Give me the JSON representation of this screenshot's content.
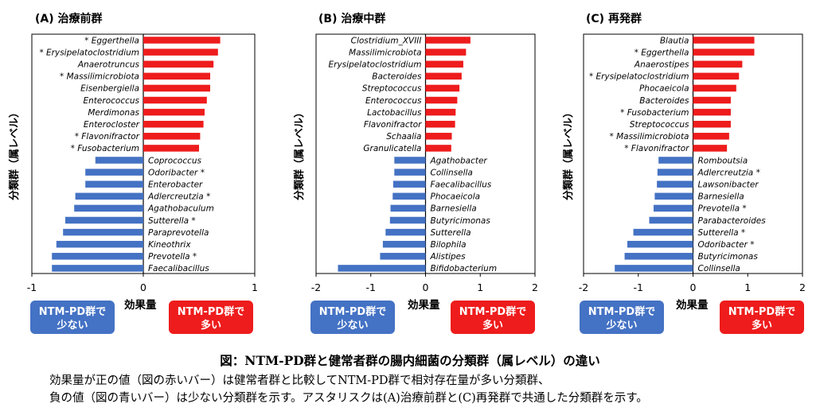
{
  "chart_data": [
    {
      "type": "bar",
      "orientation": "horizontal",
      "panel": "(A)",
      "title": "治療前群",
      "ylabel": "分類群（属レベル）",
      "xlabel": "効果量",
      "xlim": [
        -1,
        1
      ],
      "xticks": [
        "-1",
        "0",
        "1"
      ],
      "categories": [
        "* Eggerthella",
        "* Erysipelatoclostridium",
        "Anaerotruncus",
        "* Massilimicrobiota",
        "Eisenbergiella",
        "Enterococcus",
        "Merdimonas",
        "Enterocloster",
        "* Flavonifractor",
        "* Fusobacterium",
        "Coprococcus",
        "Odoribacter *",
        "Enterobacter",
        "Adlercreutzia *",
        "Agathobaculum",
        "Sutterella *",
        "Paraprevotella",
        "Kineothrix",
        "Prevotella *",
        "Faecalibacillus"
      ],
      "values": [
        0.69,
        0.67,
        0.63,
        0.6,
        0.6,
        0.57,
        0.55,
        0.54,
        0.51,
        0.5,
        -0.43,
        -0.52,
        -0.52,
        -0.61,
        -0.62,
        -0.7,
        -0.72,
        -0.78,
        -0.82,
        -0.82
      ],
      "legend": [
        {
          "label": "NTM-PD群で少ない",
          "color": "#4472C4"
        },
        {
          "label": "NTM-PD群で多い",
          "color": "#EE1C1C"
        }
      ]
    },
    {
      "type": "bar",
      "orientation": "horizontal",
      "panel": "(B)",
      "title": "治療中群",
      "ylabel": "分類群（属レベル）",
      "xlabel": "効果量",
      "xlim": [
        -2,
        2
      ],
      "xticks": [
        "-2",
        "-1",
        "0",
        "1",
        "2"
      ],
      "categories": [
        "Clostridium_XVIII",
        "Massilimicrobiota",
        "Erysipelatoclostridium",
        "Bacteroides",
        "Streptococcus",
        "Enterococcus",
        "Lactobacillus",
        "Flavonifractor",
        "Schaalia",
        "Granulicatella",
        "Agathobacter",
        "Collinsella",
        "Faecalibacillus",
        "Phocaeicola",
        "Barnesiella",
        "Butyricimonas",
        "Sutterella",
        "Bilophila",
        "Alistipes",
        "Bifidobacterium"
      ],
      "values": [
        0.82,
        0.74,
        0.69,
        0.66,
        0.62,
        0.58,
        0.55,
        0.54,
        0.48,
        0.47,
        -0.57,
        -0.57,
        -0.59,
        -0.6,
        -0.64,
        -0.65,
        -0.73,
        -0.78,
        -0.83,
        -1.6
      ],
      "legend": [
        {
          "label": "NTM-PD群で少ない",
          "color": "#4472C4"
        },
        {
          "label": "NTM-PD群で多い",
          "color": "#EE1C1C"
        }
      ]
    },
    {
      "type": "bar",
      "orientation": "horizontal",
      "panel": "(C)",
      "title": "再発群",
      "ylabel": "分類群（属レベル）",
      "xlabel": "効果量",
      "xlim": [
        -2,
        2
      ],
      "xticks": [
        "-2",
        "-1",
        "0",
        "1",
        "2"
      ],
      "categories": [
        "Blautia",
        "* Eggerthella",
        "Anaerostipes",
        "* Erysipelatoclostridium",
        "Phocaeicola",
        "Bacteroides",
        "* Fusobacterium",
        "Streptococcus",
        "* Massilimicrobiota",
        "* Flavonifractor",
        "Romboutsia",
        "Adlercreutzia *",
        "Lawsonibacter",
        "Barnesiella",
        "Prevotella *",
        "Parabacteroides",
        "Sutterella *",
        "Odoribacter *",
        "Butyricimonas",
        "Collinsella"
      ],
      "values": [
        1.12,
        1.12,
        0.9,
        0.84,
        0.79,
        0.69,
        0.69,
        0.69,
        0.66,
        0.62,
        -0.63,
        -0.65,
        -0.66,
        -0.7,
        -0.72,
        -0.8,
        -1.09,
        -1.2,
        -1.25,
        -1.43
      ],
      "legend": [
        {
          "label": "NTM-PD群で少ない",
          "color": "#4472C4"
        },
        {
          "label": "NTM-PD群で多い",
          "color": "#EE1C1C"
        }
      ]
    }
  ],
  "colors": {
    "positive": "#EE1C1C",
    "negative": "#4472C4"
  },
  "caption": {
    "title": "図：NTM-PD群と健常者群の腸内細菌の分類群（属レベル）の違い",
    "line1": "効果量が正の値（図の赤いバー）は健常者群と比較してNTM-PD群で相対存在量が多い分類群、",
    "line2": "負の値（図の青いバー）は少ない分類群を示す。アスタリスクは(A)治療前群と(C)再発群で共通した分類群を示す。"
  }
}
